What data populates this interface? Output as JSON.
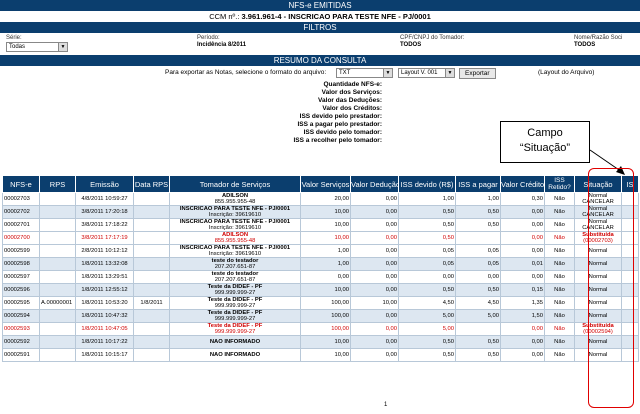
{
  "header": {
    "title": "NFS-e EMITIDAS",
    "ccm_label": "CCM nº.:",
    "ccm_value": "3.961.961-4 - INSCRICAO PARA TESTE NFE - PJ/0001",
    "filters_title": "FILTROS",
    "summary_title": "RESUMO DA CONSULTA"
  },
  "filters": {
    "serie_label": "Série:",
    "serie_value": "Todas",
    "periodo_label": "Período:",
    "periodo_value": "Incidência 8/2011",
    "cpf_label": "CPF/CNPJ do Tomador:",
    "cpf_value": "TODOS",
    "nome_label": "Nome/Razão Soci",
    "nome_value": "TODOS"
  },
  "export": {
    "prompt": "Para exportar as Notas, selecione o formato do arquivo:",
    "format_value": "TXT",
    "layout_value": "Layout V. 001",
    "button_label": "Exportar",
    "layout_link": "(Layout do Arquivo)"
  },
  "summary": [
    "Quantidade NFS-e:",
    "Valor dos Serviços:",
    "Valor das Deduções:",
    "Valor dos Créditos:",
    "ISS devido pelo prestador:",
    "ISS a pagar pelo prestador:",
    "ISS devido pelo tomador:",
    "ISS a recolher pelo tomador:"
  ],
  "callout": {
    "line1": "Campo",
    "line2": "“Situação”"
  },
  "table": {
    "columns": [
      "NFS-e",
      "RPS",
      "Emissão",
      "Data RPS",
      "Tomador de Serviços",
      "Valor Serviços",
      "Valor Dedução",
      "ISS devido (R$)",
      "ISS a pagar",
      "Valor Crédito",
      "ISS Retido?",
      "Situação",
      "IS"
    ],
    "rows": [
      {
        "nfse": "00002703",
        "rps": "",
        "emissao": "4/8/2011 10:59:27",
        "data_rps": "",
        "tomador": "ADILSON",
        "doc": "855.955.955-48",
        "valor": "20,00",
        "deducao": "0,00",
        "iss_devido": "1,00",
        "iss_pagar": "1,00",
        "credito": "0,30",
        "retido": "Não",
        "situacao": "Normal",
        "situacao2": "CANCELAR",
        "style": "normal"
      },
      {
        "nfse": "00002702",
        "rps": "",
        "emissao": "3/8/2011 17:20:18",
        "data_rps": "",
        "tomador": "INSCRICAO PARA TESTE NFE - PJ/0001",
        "doc": "Inscrição: 39619610",
        "valor": "10,00",
        "deducao": "0,00",
        "iss_devido": "0,50",
        "iss_pagar": "0,50",
        "credito": "0,00",
        "retido": "Não",
        "situacao": "Normal",
        "situacao2": "CANCELAR",
        "style": "alt"
      },
      {
        "nfse": "00002701",
        "rps": "",
        "emissao": "3/8/2011 17:18:22",
        "data_rps": "",
        "tomador": "INSCRICAO PARA TESTE NFE - PJ/0001",
        "doc": "Inscrição: 39619610",
        "valor": "10,00",
        "deducao": "0,00",
        "iss_devido": "0,50",
        "iss_pagar": "0,50",
        "credito": "0,00",
        "retido": "Não",
        "situacao": "Normal",
        "situacao2": "CANCELAR",
        "style": "normal"
      },
      {
        "nfse": "00002700",
        "rps": "",
        "emissao": "3/8/2011 17:17:19",
        "data_rps": "",
        "tomador": "ADILSON",
        "doc": "855.955.955-48",
        "valor": "10,00",
        "deducao": "0,00",
        "iss_devido": "0,50",
        "iss_pagar": "",
        "credito": "0,00",
        "retido": "Não",
        "situacao": "Substituída",
        "situacao2": "(00002703)",
        "style": "canc"
      },
      {
        "nfse": "00002599",
        "rps": "",
        "emissao": "2/8/2011 10:12:12",
        "data_rps": "",
        "tomador": "INSCRICAO PARA TESTE NFE - PJ/0001",
        "doc": "Inscrição: 39619610",
        "valor": "1,00",
        "deducao": "0,00",
        "iss_devido": "0,05",
        "iss_pagar": "0,05",
        "credito": "0,00",
        "retido": "Não",
        "situacao": "Normal",
        "situacao2": "",
        "style": "normal"
      },
      {
        "nfse": "00002598",
        "rps": "",
        "emissao": "1/8/2011 13:32:08",
        "data_rps": "",
        "tomador": "teste do testador",
        "doc": "207.207.651-87",
        "valor": "1,00",
        "deducao": "0,00",
        "iss_devido": "0,05",
        "iss_pagar": "0,05",
        "credito": "0,01",
        "retido": "Não",
        "situacao": "Normal",
        "situacao2": "",
        "style": "alt"
      },
      {
        "nfse": "00002597",
        "rps": "",
        "emissao": "1/8/2011 13:29:51",
        "data_rps": "",
        "tomador": "teste do testador",
        "doc": "207.207.651-87",
        "valor": "0,00",
        "deducao": "0,00",
        "iss_devido": "0,00",
        "iss_pagar": "0,00",
        "credito": "0,00",
        "retido": "Não",
        "situacao": "Normal",
        "situacao2": "",
        "style": "normal"
      },
      {
        "nfse": "00002596",
        "rps": "",
        "emissao": "1/8/2011 12:55:12",
        "data_rps": "",
        "tomador": "Teste da DIDEF - PF",
        "doc": "999.999.999-27",
        "valor": "10,00",
        "deducao": "0,00",
        "iss_devido": "0,50",
        "iss_pagar": "0,50",
        "credito": "0,15",
        "retido": "Não",
        "situacao": "Normal",
        "situacao2": "",
        "style": "alt"
      },
      {
        "nfse": "00002595",
        "rps": "A.00000001",
        "emissao": "1/8/2011 10:53:20",
        "data_rps": "1/8/2011",
        "tomador": "Teste da DIDEF - PF",
        "doc": "999.999.999-27",
        "valor": "100,00",
        "deducao": "10,00",
        "iss_devido": "4,50",
        "iss_pagar": "4,50",
        "credito": "1,35",
        "retido": "Não",
        "situacao": "Normal",
        "situacao2": "",
        "style": "normal"
      },
      {
        "nfse": "00002594",
        "rps": "",
        "emissao": "1/8/2011 10:47:32",
        "data_rps": "",
        "tomador": "Teste da DIDEF - PF",
        "doc": "999.999.999-27",
        "valor": "100,00",
        "deducao": "0,00",
        "iss_devido": "5,00",
        "iss_pagar": "5,00",
        "credito": "1,50",
        "retido": "Não",
        "situacao": "Normal",
        "situacao2": "",
        "style": "alt"
      },
      {
        "nfse": "00002593",
        "rps": "",
        "emissao": "1/8/2011 10:47:05",
        "data_rps": "",
        "tomador": "Teste da DIDEF - PF",
        "doc": "999.999.999-27",
        "valor": "100,00",
        "deducao": "0,00",
        "iss_devido": "5,00",
        "iss_pagar": "",
        "credito": "0,00",
        "retido": "Não",
        "situacao": "Substituída",
        "situacao2": "(00002594)",
        "style": "canc"
      },
      {
        "nfse": "00002592",
        "rps": "",
        "emissao": "1/8/2011 10:17:22",
        "data_rps": "",
        "tomador": "NAO INFORMADO",
        "doc": "",
        "valor": "10,00",
        "deducao": "0,00",
        "iss_devido": "0,50",
        "iss_pagar": "0,50",
        "credito": "0,00",
        "retido": "Não",
        "situacao": "Normal",
        "situacao2": "",
        "style": "alt"
      },
      {
        "nfse": "00002591",
        "rps": "",
        "emissao": "1/8/2011 10:15:17",
        "data_rps": "",
        "tomador": "NAO INFORMADO",
        "doc": "",
        "valor": "10,00",
        "deducao": "0,00",
        "iss_devido": "0,50",
        "iss_pagar": "0,50",
        "credito": "0,00",
        "retido": "Não",
        "situacao": "Normal",
        "situacao2": "",
        "style": "normal"
      }
    ]
  },
  "pager": "1",
  "colors": {
    "header_bg": "#0b3e6e",
    "row_alt": "#dde7f1",
    "cancel_text": "#d00000",
    "highlight": "#e00000"
  }
}
